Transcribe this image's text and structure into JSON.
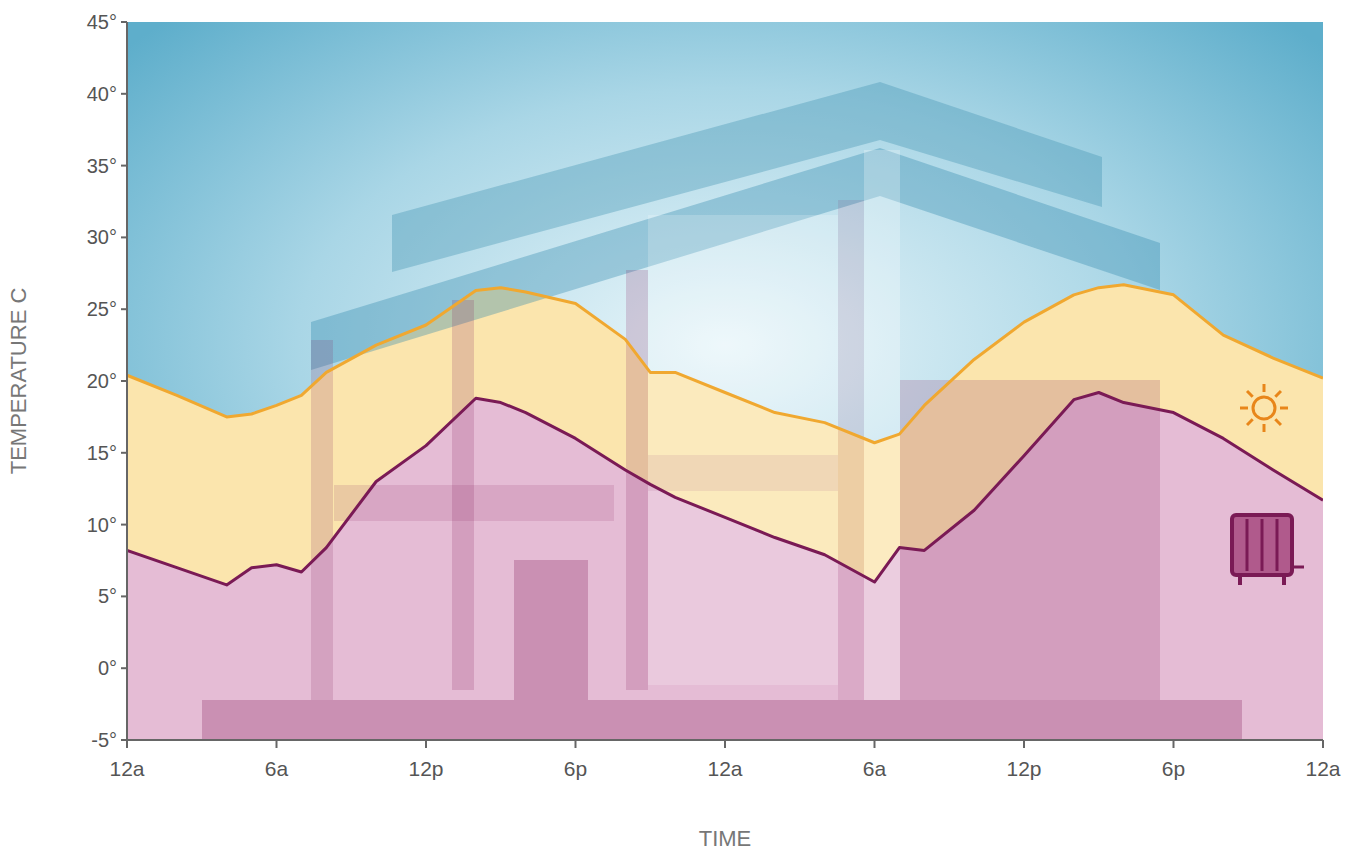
{
  "chart_data": {
    "type": "area",
    "x_label": "TIME",
    "y_label": "TEMPERATURE C",
    "x": [
      0,
      2,
      4,
      5,
      6,
      7,
      8,
      10,
      12,
      14,
      15,
      16,
      18,
      20,
      21,
      22,
      24,
      26,
      28,
      30,
      31,
      32,
      34,
      36,
      38,
      39,
      40,
      42,
      44,
      46,
      48
    ],
    "series": [
      {
        "color": "#f0a830",
        "values": [
          20.4,
          19,
          17.5,
          17.7,
          18.3,
          19,
          20.6,
          22.5,
          23.9,
          26.3,
          26.5,
          26.2,
          25.4,
          22.9,
          20.6,
          20.6,
          19.2,
          17.8,
          17.1,
          15.7,
          16.3,
          18.3,
          21.5,
          24.1,
          26,
          26.5,
          26.7,
          26,
          23.2,
          21.6,
          20.2
        ]
      },
      {
        "color": "#7a1a55",
        "values": [
          8.2,
          7,
          5.8,
          7,
          7.2,
          6.7,
          8.4,
          13,
          15.5,
          18.8,
          18.5,
          17.8,
          16,
          13.8,
          12.8,
          11.9,
          10.5,
          9.1,
          7.9,
          6,
          8.4,
          8.2,
          11,
          14.8,
          18.7,
          19.2,
          18.5,
          17.8,
          16,
          13.8,
          11.7
        ]
      }
    ],
    "xlim": [
      0,
      48
    ],
    "xticks": [
      {
        "value": 0,
        "label": "12a"
      },
      {
        "value": 6,
        "label": "6a"
      },
      {
        "value": 12,
        "label": "12p"
      },
      {
        "value": 18,
        "label": "6p"
      },
      {
        "value": 24,
        "label": "12a"
      },
      {
        "value": 30,
        "label": "6a"
      },
      {
        "value": 36,
        "label": "12p"
      },
      {
        "value": 42,
        "label": "6p"
      },
      {
        "value": 48,
        "label": "12a"
      }
    ],
    "ylim": [
      -5,
      45
    ],
    "yticks": [
      {
        "value": -5,
        "label": "-5°"
      },
      {
        "value": 0,
        "label": "0°"
      },
      {
        "value": 5,
        "label": "5°"
      },
      {
        "value": 10,
        "label": "10°"
      },
      {
        "value": 15,
        "label": "15°"
      },
      {
        "value": 20,
        "label": "20°"
      },
      {
        "value": 25,
        "label": "25°"
      },
      {
        "value": 30,
        "label": "30°"
      },
      {
        "value": 35,
        "label": "35°"
      },
      {
        "value": 40,
        "label": "40°"
      },
      {
        "value": 45,
        "label": "45°"
      }
    ],
    "grid": false
  }
}
